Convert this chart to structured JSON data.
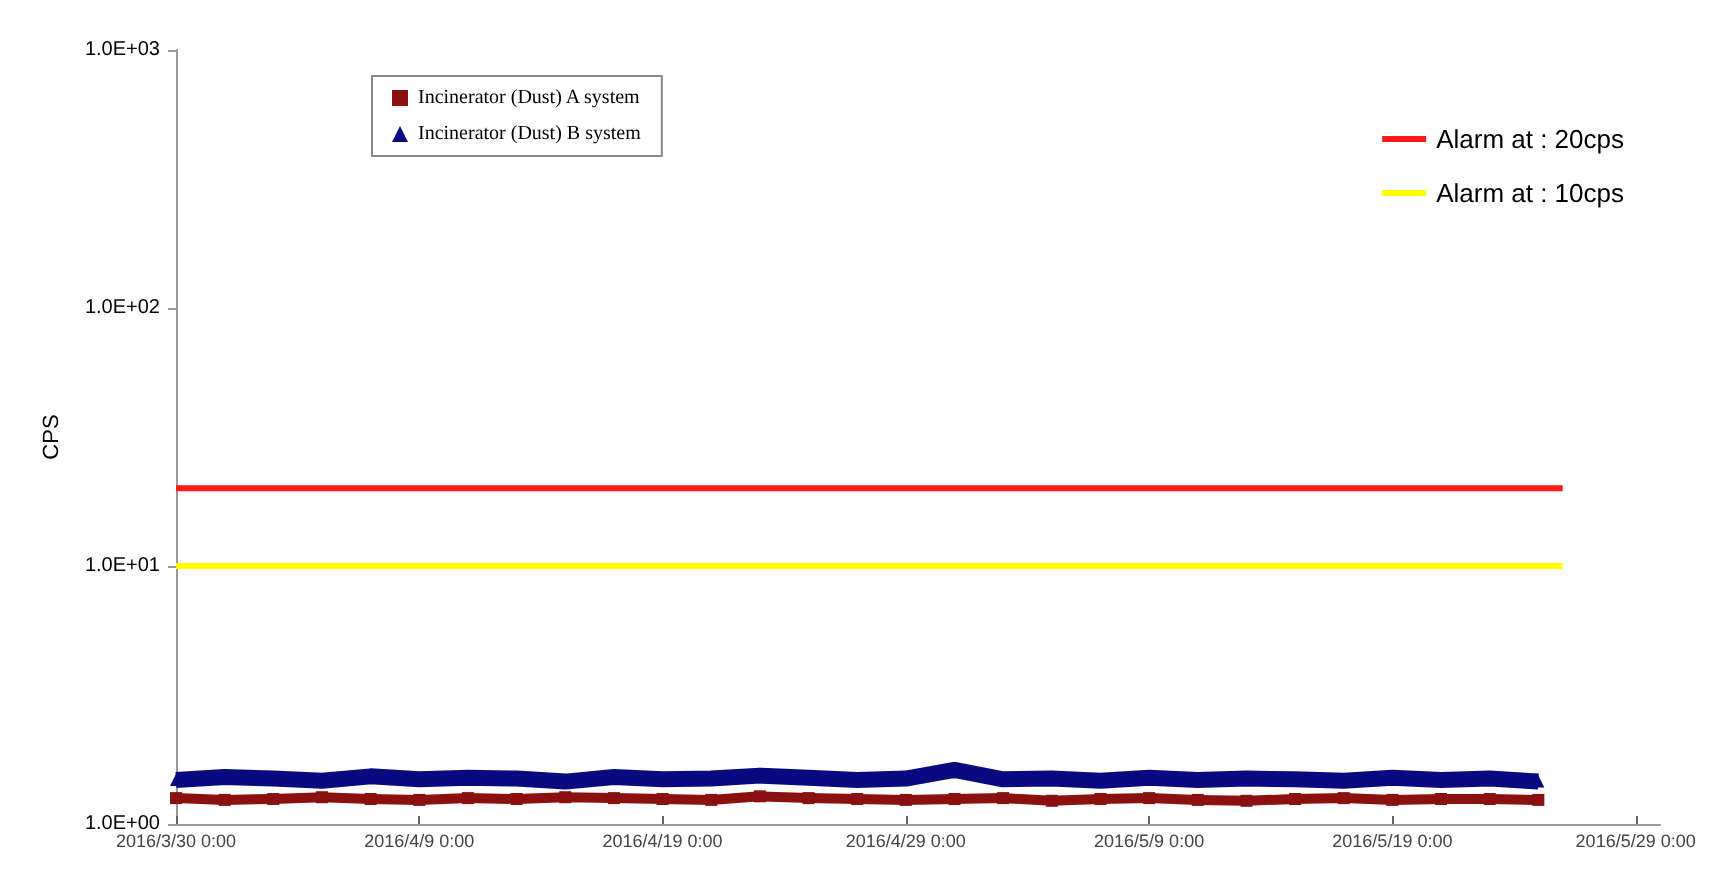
{
  "chart_data": {
    "type": "line",
    "ylabel": "CPS",
    "log": "y",
    "grid": false,
    "legend": "top",
    "x": [
      "2016-03-30",
      "2016-04-01",
      "2016-04-03",
      "2016-04-05",
      "2016-04-07",
      "2016-04-09",
      "2016-04-11",
      "2016-04-13",
      "2016-04-15",
      "2016-04-17",
      "2016-04-19",
      "2016-04-21",
      "2016-04-23",
      "2016-04-25",
      "2016-04-27",
      "2016-04-29",
      "2016-05-01",
      "2016-05-03",
      "2016-05-05",
      "2016-05-07",
      "2016-05-09",
      "2016-05-11",
      "2016-05-13",
      "2016-05-15",
      "2016-05-17",
      "2016-05-19",
      "2016-05-21",
      "2016-05-23",
      "2016-05-25"
    ],
    "xlim": [
      "2016-03-30",
      "2016-05-30"
    ],
    "xticks": [
      {
        "value": "2016-03-30",
        "label": "2016/3/30 0:00"
      },
      {
        "value": "2016-04-09",
        "label": "2016/4/9 0:00"
      },
      {
        "value": "2016-04-19",
        "label": "2016/4/19 0:00"
      },
      {
        "value": "2016-04-29",
        "label": "2016/4/29 0:00"
      },
      {
        "value": "2016-05-09",
        "label": "2016/5/9 0:00"
      },
      {
        "value": "2016-05-19",
        "label": "2016/5/19 0:00"
      },
      {
        "value": "2016-05-29",
        "label": "2016/5/29 0:00"
      }
    ],
    "ylim": [
      1,
      1000
    ],
    "yticks": [
      {
        "value": 1,
        "label": "1.0E+00"
      },
      {
        "value": 10,
        "label": "1.0E+01"
      },
      {
        "value": 100,
        "label": "1.0E+02"
      },
      {
        "value": 1000,
        "label": "1.0E+03"
      }
    ],
    "series": [
      {
        "name": "Incinerator (Dust) A system",
        "color": "#8b1010",
        "marker": "square",
        "values": [
          1.26,
          1.24,
          1.25,
          1.27,
          1.25,
          1.24,
          1.26,
          1.25,
          1.27,
          1.26,
          1.25,
          1.24,
          1.28,
          1.26,
          1.25,
          1.24,
          1.25,
          1.26,
          1.23,
          1.25,
          1.26,
          1.24,
          1.23,
          1.25,
          1.26,
          1.24,
          1.25,
          1.25,
          1.24
        ]
      },
      {
        "name": "Incinerator (Dust) B system",
        "color": "#0a0a80",
        "marker": "triangle",
        "values": [
          1.48,
          1.52,
          1.5,
          1.47,
          1.53,
          1.49,
          1.51,
          1.5,
          1.46,
          1.52,
          1.49,
          1.5,
          1.54,
          1.51,
          1.48,
          1.5,
          1.62,
          1.49,
          1.5,
          1.47,
          1.51,
          1.48,
          1.5,
          1.49,
          1.47,
          1.51,
          1.48,
          1.5,
          1.46
        ]
      },
      {
        "name": "Alarm at : 20cps",
        "color": "#ff1a1a",
        "marker": "none",
        "x": [
          "2016-03-30",
          "2016-05-26"
        ],
        "values": [
          20,
          20
        ]
      },
      {
        "name": "Alarm at : 10cps",
        "color": "#ffff00",
        "marker": "none",
        "x": [
          "2016-03-30",
          "2016-05-26"
        ],
        "values": [
          10,
          10
        ]
      }
    ]
  }
}
